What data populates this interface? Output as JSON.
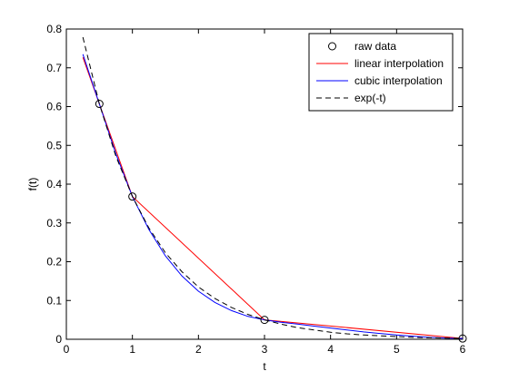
{
  "chart_data": {
    "type": "line",
    "title": "",
    "xlabel": "t",
    "ylabel": "f(t)",
    "xlim": [
      0,
      6
    ],
    "ylim": [
      0,
      0.8
    ],
    "xticks": [
      0,
      1,
      2,
      3,
      4,
      5,
      6
    ],
    "yticks": [
      0,
      0.1,
      0.2,
      0.3,
      0.4,
      0.5,
      0.6,
      0.7,
      0.8
    ],
    "grid": false,
    "legend_position": "top-right",
    "series": [
      {
        "name": "raw data",
        "style": "markers",
        "marker": "circle",
        "color": "#000000",
        "x": [
          0.5,
          1,
          3,
          6
        ],
        "y": [
          0.607,
          0.368,
          0.05,
          0.002
        ]
      },
      {
        "name": "linear interpolation",
        "style": "solid",
        "color": "#ff0000",
        "x": [
          0.25,
          0.5,
          1,
          3,
          6
        ],
        "y": [
          0.727,
          0.607,
          0.368,
          0.05,
          0.002
        ]
      },
      {
        "name": "cubic interpolation",
        "style": "solid",
        "color": "#0000ff",
        "x": [
          0.25,
          0.5,
          0.75,
          1,
          1.25,
          1.5,
          1.75,
          2,
          2.25,
          2.5,
          2.75,
          3,
          3.25,
          3.5,
          3.75,
          4,
          4.25,
          4.5,
          4.75,
          5,
          5.25,
          5.5,
          5.75,
          6
        ],
        "y": [
          0.735,
          0.607,
          0.478,
          0.368,
          0.283,
          0.215,
          0.163,
          0.124,
          0.095,
          0.074,
          0.059,
          0.05,
          0.044,
          0.039,
          0.034,
          0.029,
          0.024,
          0.019,
          0.015,
          0.011,
          0.008,
          0.005,
          0.003,
          0.002
        ]
      },
      {
        "name": "exp(-t)",
        "style": "dashed",
        "color": "#000000",
        "x": [
          0.25,
          0.5,
          0.75,
          1,
          1.25,
          1.5,
          1.75,
          2,
          2.25,
          2.5,
          2.75,
          3,
          3.25,
          3.5,
          3.75,
          4,
          4.25,
          4.5,
          4.75,
          5,
          5.25,
          5.5,
          5.75,
          6
        ],
        "y": [
          0.779,
          0.607,
          0.472,
          0.368,
          0.287,
          0.223,
          0.174,
          0.135,
          0.105,
          0.082,
          0.064,
          0.05,
          0.039,
          0.03,
          0.024,
          0.018,
          0.014,
          0.011,
          0.009,
          0.007,
          0.005,
          0.004,
          0.003,
          0.002
        ]
      }
    ]
  }
}
